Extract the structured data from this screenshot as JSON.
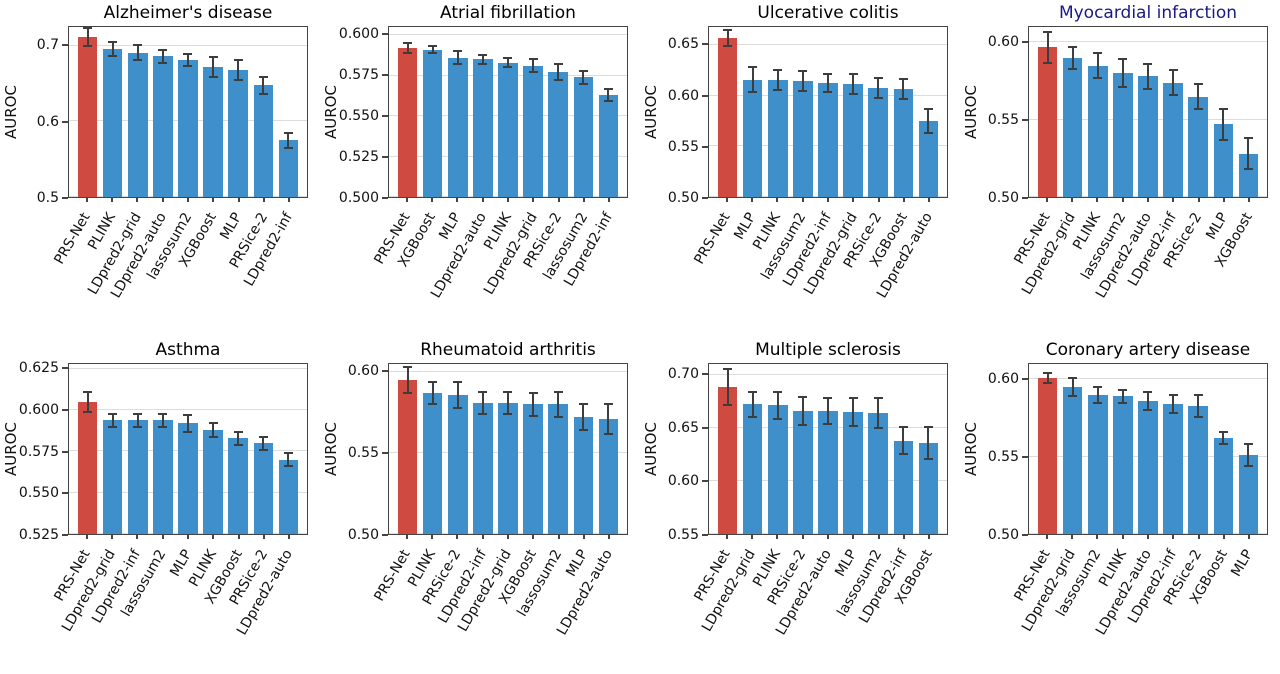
{
  "figure": {
    "ylabel": "AUROC"
  },
  "colors": {
    "highlight_bar": "#cf4a41",
    "bar": "#3f8fca",
    "error_bar": "#3d3d3d",
    "gridline": "#dcdcdc",
    "spine": "#444444",
    "title_default": "#000000",
    "title_highlighted": "#191987"
  },
  "chart_data": [
    {
      "type": "bar",
      "title": "Alzheimer's disease",
      "title_color": "#000000",
      "ylabel": "AUROC",
      "ylim": [
        0.5,
        0.725
      ],
      "yticks": [
        0.5,
        0.6,
        0.7
      ],
      "ytick_labels": [
        "0.5",
        "0.6",
        "0.7"
      ],
      "grid": "horizontal",
      "legend": "none",
      "highlight_index": 0,
      "categories": [
        "PRS-Net",
        "PLINK",
        "LDpred2-grid",
        "LDpred2-auto",
        "lassosum2",
        "XGBoost",
        "MLP",
        "PRSice-2",
        "LDpred2-inf"
      ],
      "values": [
        0.712,
        0.696,
        0.691,
        0.686,
        0.681,
        0.672,
        0.668,
        0.648,
        0.575
      ],
      "errors": [
        0.012,
        0.009,
        0.01,
        0.009,
        0.008,
        0.013,
        0.013,
        0.011,
        0.01
      ]
    },
    {
      "type": "bar",
      "title": "Atrial fibrillation",
      "title_color": "#000000",
      "ylabel": "AUROC",
      "ylim": [
        0.5,
        0.605
      ],
      "yticks": [
        0.5,
        0.525,
        0.55,
        0.575,
        0.6
      ],
      "ytick_labels": [
        "0.500",
        "0.525",
        "0.550",
        "0.575",
        "0.600"
      ],
      "grid": "horizontal",
      "legend": "none",
      "highlight_index": 0,
      "categories": [
        "PRS-Net",
        "XGBoost",
        "MLP",
        "LDpred2-auto",
        "PLINK",
        "LDpred2-grid",
        "PRSice-2",
        "lassosum2",
        "LDpred2-inf"
      ],
      "values": [
        0.592,
        0.591,
        0.586,
        0.585,
        0.583,
        0.581,
        0.577,
        0.574,
        0.563
      ],
      "errors": [
        0.003,
        0.002,
        0.004,
        0.003,
        0.003,
        0.004,
        0.005,
        0.004,
        0.004
      ]
    },
    {
      "type": "bar",
      "title": "Ulcerative colitis",
      "title_color": "#000000",
      "ylabel": "AUROC",
      "ylim": [
        0.5,
        0.668
      ],
      "yticks": [
        0.5,
        0.55,
        0.6,
        0.65
      ],
      "ytick_labels": [
        "0.50",
        "0.55",
        "0.60",
        "0.65"
      ],
      "grid": "horizontal",
      "legend": "none",
      "highlight_index": 0,
      "categories": [
        "PRS-Net",
        "MLP",
        "PLINK",
        "lassosum2",
        "LDpred2-inf",
        "LDpred2-grid",
        "PRSice-2",
        "XGBoost",
        "LDpred2-auto"
      ],
      "values": [
        0.657,
        0.616,
        0.616,
        0.615,
        0.613,
        0.612,
        0.608,
        0.607,
        0.575
      ],
      "errors": [
        0.008,
        0.012,
        0.01,
        0.01,
        0.009,
        0.01,
        0.01,
        0.01,
        0.012
      ]
    },
    {
      "type": "bar",
      "title": "Myocardial infarction",
      "title_color": "#191987",
      "ylabel": "AUROC",
      "ylim": [
        0.5,
        0.61
      ],
      "yticks": [
        0.5,
        0.55,
        0.6
      ],
      "ytick_labels": [
        "0.50",
        "0.55",
        "0.60"
      ],
      "grid": "horizontal",
      "legend": "none",
      "highlight_index": 0,
      "categories": [
        "PRS-Net",
        "LDpred2-grid",
        "PLINK",
        "lassosum2",
        "LDpred2-auto",
        "LDpred2-inf",
        "PRSice-2",
        "MLP",
        "XGBoost"
      ],
      "values": [
        0.597,
        0.59,
        0.585,
        0.58,
        0.578,
        0.574,
        0.565,
        0.547,
        0.528
      ],
      "errors": [
        0.01,
        0.007,
        0.008,
        0.009,
        0.008,
        0.008,
        0.008,
        0.01,
        0.01
      ]
    },
    {
      "type": "bar",
      "title": "Asthma",
      "title_color": "#000000",
      "ylabel": "AUROC",
      "ylim": [
        0.525,
        0.628
      ],
      "yticks": [
        0.525,
        0.55,
        0.575,
        0.6,
        0.625
      ],
      "ytick_labels": [
        "0.525",
        "0.550",
        "0.575",
        "0.600",
        "0.625"
      ],
      "grid": "horizontal",
      "legend": "none",
      "highlight_index": 0,
      "categories": [
        "PRS-Net",
        "LDpred2-grid",
        "LDpred2-inf",
        "lassosum2",
        "MLP",
        "PLINK",
        "XGBoost",
        "PRSice-2",
        "LDpred2-auto"
      ],
      "values": [
        0.605,
        0.594,
        0.594,
        0.594,
        0.592,
        0.588,
        0.583,
        0.58,
        0.57
      ],
      "errors": [
        0.006,
        0.004,
        0.004,
        0.004,
        0.005,
        0.004,
        0.004,
        0.004,
        0.004
      ]
    },
    {
      "type": "bar",
      "title": "Rheumatoid arthritis",
      "title_color": "#000000",
      "ylabel": "AUROC",
      "ylim": [
        0.5,
        0.605
      ],
      "yticks": [
        0.5,
        0.55,
        0.6
      ],
      "ytick_labels": [
        "0.50",
        "0.55",
        "0.60"
      ],
      "grid": "horizontal",
      "legend": "none",
      "highlight_index": 0,
      "categories": [
        "PRS-Net",
        "PLINK",
        "PRSice-2",
        "LDpred2-inf",
        "LDpred2-grid",
        "XGBoost",
        "lassosum2",
        "MLP",
        "LDpred2-auto"
      ],
      "values": [
        0.595,
        0.587,
        0.586,
        0.581,
        0.581,
        0.58,
        0.58,
        0.572,
        0.571
      ],
      "errors": [
        0.008,
        0.007,
        0.008,
        0.007,
        0.007,
        0.007,
        0.008,
        0.008,
        0.009
      ]
    },
    {
      "type": "bar",
      "title": "Multiple sclerosis",
      "title_color": "#000000",
      "ylabel": "AUROC",
      "ylim": [
        0.55,
        0.71
      ],
      "yticks": [
        0.55,
        0.6,
        0.65,
        0.7
      ],
      "ytick_labels": [
        "0.55",
        "0.60",
        "0.65",
        "0.70"
      ],
      "grid": "horizontal",
      "legend": "none",
      "highlight_index": 0,
      "categories": [
        "PRS-Net",
        "LDpred2-grid",
        "PLINK",
        "PRSice-2",
        "LDpred2-auto",
        "MLP",
        "lassosum2",
        "LDpred2-inf",
        "XGBoost"
      ],
      "values": [
        0.688,
        0.672,
        0.671,
        0.666,
        0.666,
        0.665,
        0.664,
        0.638,
        0.636
      ],
      "errors": [
        0.017,
        0.012,
        0.013,
        0.013,
        0.012,
        0.013,
        0.014,
        0.013,
        0.015
      ]
    },
    {
      "type": "bar",
      "title": "Coronary artery disease",
      "title_color": "#000000",
      "ylabel": "AUROC",
      "ylim": [
        0.5,
        0.61
      ],
      "yticks": [
        0.5,
        0.55,
        0.6
      ],
      "ytick_labels": [
        "0.50",
        "0.55",
        "0.60"
      ],
      "grid": "horizontal",
      "legend": "none",
      "highlight_index": 0,
      "categories": [
        "PRS-Net",
        "LDpred2-grid",
        "lassosum2",
        "PLINK",
        "LDpred2-auto",
        "LDpred2-inf",
        "PRSice-2",
        "XGBoost",
        "MLP"
      ],
      "values": [
        0.601,
        0.595,
        0.59,
        0.589,
        0.586,
        0.584,
        0.583,
        0.562,
        0.551
      ],
      "errors": [
        0.003,
        0.006,
        0.005,
        0.004,
        0.006,
        0.006,
        0.007,
        0.004,
        0.007
      ]
    }
  ]
}
